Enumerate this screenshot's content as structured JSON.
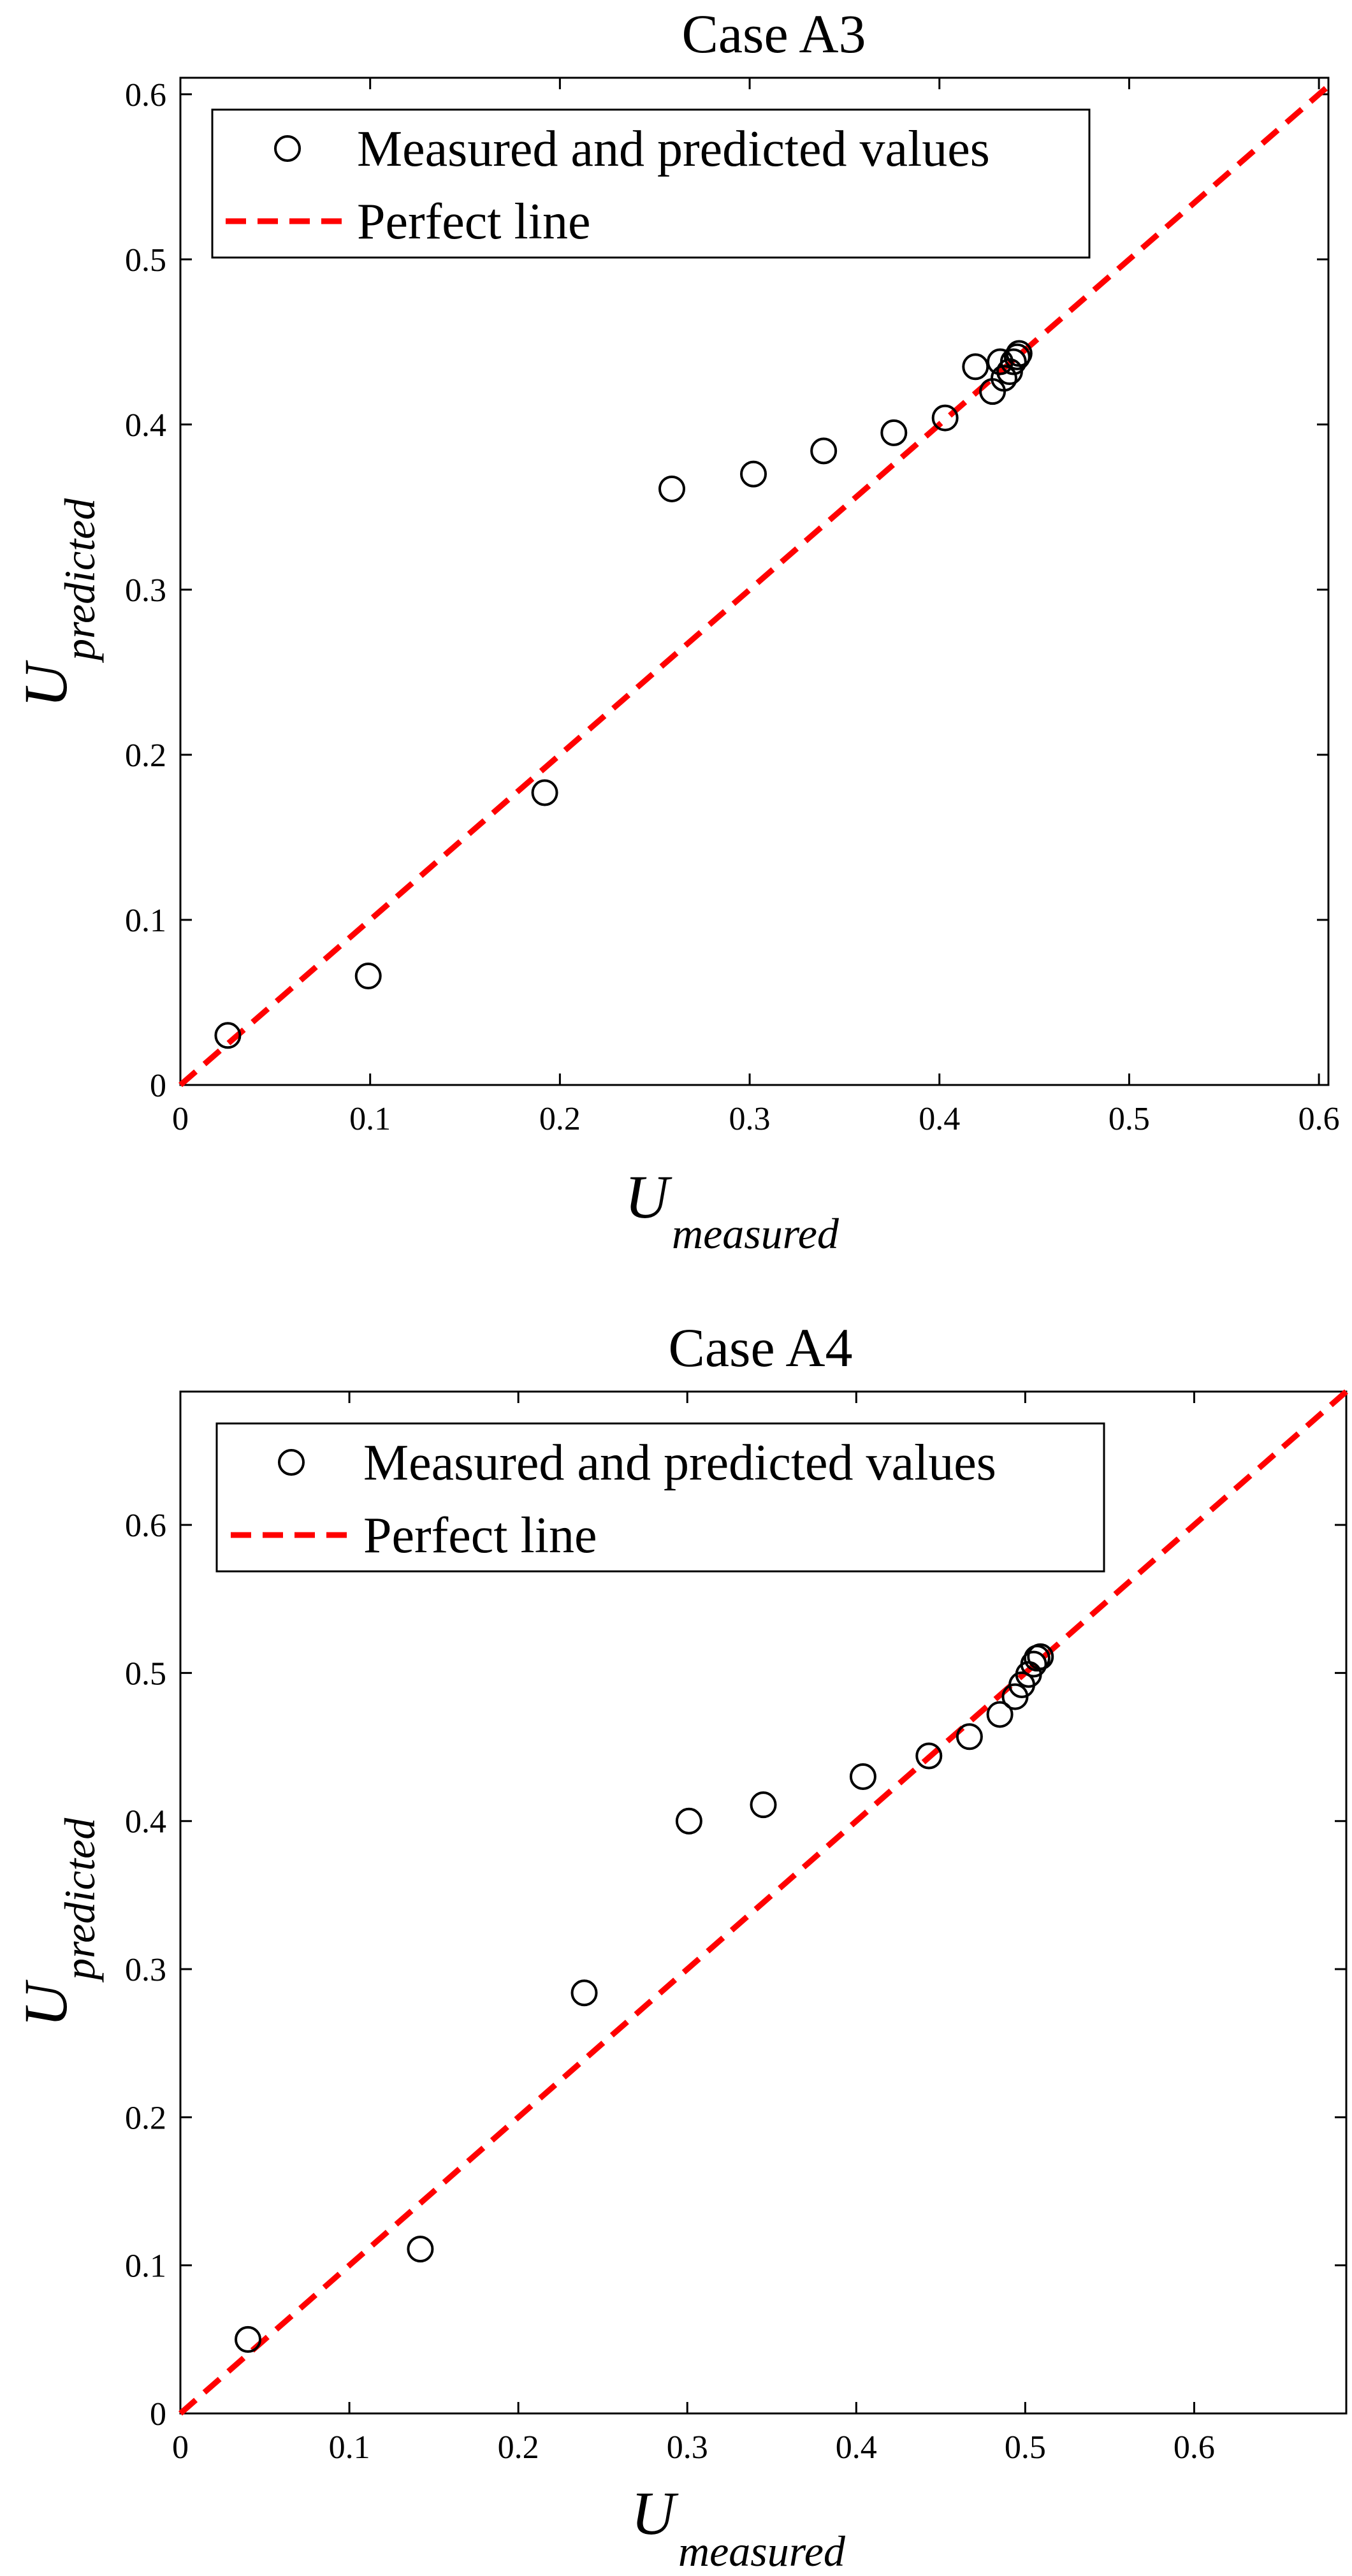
{
  "chart_data": [
    {
      "type": "scatter",
      "title": "Case A3",
      "xlabel": {
        "main": "U",
        "sub": "measured"
      },
      "ylabel": {
        "main": "U",
        "sub": "predicted"
      },
      "xlim": [
        0,
        0.605
      ],
      "ylim": [
        0,
        0.61
      ],
      "xticks": [
        0,
        0.1,
        0.2,
        0.3,
        0.4,
        0.5,
        0.6
      ],
      "yticks": [
        0,
        0.1,
        0.2,
        0.3,
        0.4,
        0.5,
        0.6
      ],
      "xtick_labels": [
        "0",
        "0.1",
        "0.2",
        "0.3",
        "0.4",
        "0.5",
        "0.6"
      ],
      "ytick_labels": [
        "0",
        "0.1",
        "0.2",
        "0.3",
        "0.4",
        "0.5",
        "0.6"
      ],
      "legend": {
        "location": "top-left",
        "entries": [
          "Measured and predicted values",
          "Perfect line"
        ]
      },
      "series": [
        {
          "name": "Measured and predicted values",
          "style": "open-circle",
          "color": "#000000",
          "points": [
            [
              0.025,
              0.03
            ],
            [
              0.099,
              0.066
            ],
            [
              0.192,
              0.177
            ],
            [
              0.259,
              0.361
            ],
            [
              0.302,
              0.37
            ],
            [
              0.339,
              0.384
            ],
            [
              0.376,
              0.395
            ],
            [
              0.403,
              0.404
            ],
            [
              0.419,
              0.435
            ],
            [
              0.428,
              0.42
            ],
            [
              0.432,
              0.438
            ],
            [
              0.434,
              0.428
            ],
            [
              0.437,
              0.432
            ],
            [
              0.439,
              0.438
            ],
            [
              0.441,
              0.441
            ],
            [
              0.442,
              0.443
            ]
          ]
        },
        {
          "name": "Perfect line",
          "style": "dashed-line",
          "color": "#ff0000",
          "points": [
            [
              0,
              0
            ],
            [
              0.605,
              0.605
            ]
          ]
        }
      ]
    },
    {
      "type": "scatter",
      "title": "Case A4",
      "xlabel": {
        "main": "U",
        "sub": "measured"
      },
      "ylabel": {
        "main": "U",
        "sub": "predicted"
      },
      "xlim": [
        0,
        0.69
      ],
      "ylim": [
        0,
        0.69
      ],
      "xticks": [
        0,
        0.1,
        0.2,
        0.3,
        0.4,
        0.5,
        0.6
      ],
      "yticks": [
        0,
        0.1,
        0.2,
        0.3,
        0.4,
        0.5,
        0.6
      ],
      "xtick_labels": [
        "0",
        "0.1",
        "0.2",
        "0.3",
        "0.4",
        "0.5",
        "0.6"
      ],
      "ytick_labels": [
        "0",
        "0.1",
        "0.2",
        "0.3",
        "0.4",
        "0.5",
        "0.6"
      ],
      "legend": {
        "location": "top-left",
        "entries": [
          "Measured and predicted values",
          "Perfect line"
        ]
      },
      "series": [
        {
          "name": "Measured and predicted values",
          "style": "open-circle",
          "color": "#000000",
          "points": [
            [
              0.04,
              0.05
            ],
            [
              0.142,
              0.111
            ],
            [
              0.239,
              0.284
            ],
            [
              0.301,
              0.4
            ],
            [
              0.345,
              0.411
            ],
            [
              0.404,
              0.43
            ],
            [
              0.443,
              0.444
            ],
            [
              0.467,
              0.457
            ],
            [
              0.485,
              0.472
            ],
            [
              0.494,
              0.484
            ],
            [
              0.498,
              0.492
            ],
            [
              0.502,
              0.499
            ],
            [
              0.505,
              0.506
            ],
            [
              0.507,
              0.51
            ],
            [
              0.509,
              0.511
            ]
          ]
        },
        {
          "name": "Perfect line",
          "style": "dashed-line",
          "color": "#ff0000",
          "points": [
            [
              0,
              0
            ],
            [
              0.69,
              0.69
            ]
          ]
        }
      ]
    }
  ]
}
